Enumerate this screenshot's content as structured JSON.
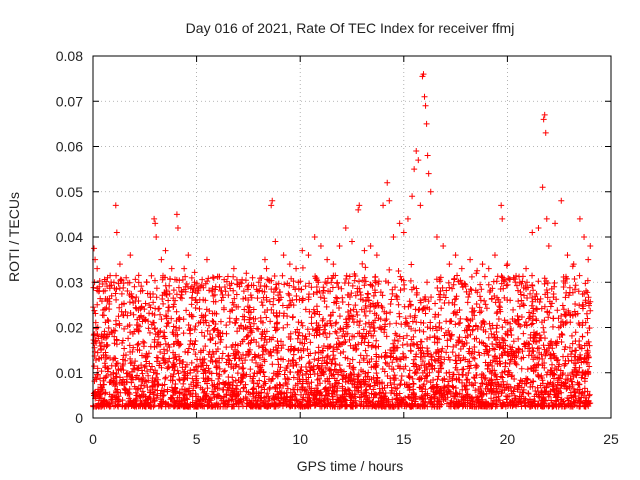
{
  "chart_data": {
    "type": "scatter",
    "title": "Day 016 of 2021, Rate Of TEC Index for receiver ffmj",
    "xlabel": "GPS time / hours",
    "ylabel": "ROTI / TECUs",
    "xlim": [
      0,
      25
    ],
    "ylim": [
      0,
      0.08
    ],
    "xticks": [
      0,
      5,
      10,
      15,
      20,
      25
    ],
    "xtick_labels": [
      "0",
      "5",
      "10",
      "15",
      "20",
      "25"
    ],
    "yticks": [
      0,
      0.01,
      0.02,
      0.03,
      0.04,
      0.05,
      0.06,
      0.07,
      0.08
    ],
    "ytick_labels": [
      "0",
      "0.01",
      "0.02",
      "0.03",
      "0.04",
      "0.05",
      "0.06",
      "0.07",
      "0.08"
    ],
    "grid": true,
    "marker": "plus",
    "series": [
      {
        "name": "ROTI",
        "color": "#ff0000",
        "points": [
          [
            0.05,
            0.0375
          ],
          [
            0.1,
            0.035
          ],
          [
            0.2,
            0.033
          ],
          [
            0.3,
            0.029
          ],
          [
            0.5,
            0.028
          ],
          [
            0.7,
            0.031
          ],
          [
            0.9,
            0.027
          ],
          [
            1.1,
            0.047
          ],
          [
            1.15,
            0.041
          ],
          [
            1.3,
            0.034
          ],
          [
            1.6,
            0.031
          ],
          [
            1.8,
            0.036
          ],
          [
            2.0,
            0.029
          ],
          [
            2.3,
            0.028
          ],
          [
            2.6,
            0.03
          ],
          [
            2.95,
            0.044
          ],
          [
            3.0,
            0.043
          ],
          [
            3.05,
            0.04
          ],
          [
            3.3,
            0.035
          ],
          [
            3.5,
            0.037
          ],
          [
            3.8,
            0.033
          ],
          [
            4.05,
            0.045
          ],
          [
            4.1,
            0.042
          ],
          [
            4.4,
            0.033
          ],
          [
            4.6,
            0.036
          ],
          [
            4.9,
            0.03
          ],
          [
            5.2,
            0.029
          ],
          [
            5.5,
            0.035
          ],
          [
            5.8,
            0.027
          ],
          [
            6.2,
            0.026
          ],
          [
            6.4,
            0.028
          ],
          [
            6.8,
            0.033
          ],
          [
            7.1,
            0.03
          ],
          [
            7.4,
            0.032
          ],
          [
            7.7,
            0.031
          ],
          [
            8.0,
            0.03
          ],
          [
            8.3,
            0.035
          ],
          [
            8.6,
            0.047
          ],
          [
            8.65,
            0.048
          ],
          [
            8.8,
            0.039
          ],
          [
            9.2,
            0.036
          ],
          [
            9.5,
            0.034
          ],
          [
            9.8,
            0.033
          ],
          [
            10.1,
            0.037
          ],
          [
            10.4,
            0.036
          ],
          [
            10.7,
            0.04
          ],
          [
            11.0,
            0.038
          ],
          [
            11.3,
            0.035
          ],
          [
            11.6,
            0.034
          ],
          [
            11.9,
            0.038
          ],
          [
            12.2,
            0.042
          ],
          [
            12.5,
            0.039
          ],
          [
            12.8,
            0.046
          ],
          [
            12.85,
            0.047
          ],
          [
            13.1,
            0.037
          ],
          [
            13.4,
            0.038
          ],
          [
            13.7,
            0.036
          ],
          [
            14.0,
            0.047
          ],
          [
            14.2,
            0.052
          ],
          [
            14.3,
            0.048
          ],
          [
            14.5,
            0.04
          ],
          [
            14.8,
            0.043
          ],
          [
            15.0,
            0.041
          ],
          [
            15.2,
            0.044
          ],
          [
            15.4,
            0.049
          ],
          [
            15.5,
            0.055
          ],
          [
            15.6,
            0.059
          ],
          [
            15.7,
            0.057
          ],
          [
            15.8,
            0.047
          ],
          [
            15.9,
            0.0755
          ],
          [
            15.95,
            0.076
          ],
          [
            16.0,
            0.071
          ],
          [
            16.05,
            0.069
          ],
          [
            16.1,
            0.065
          ],
          [
            16.15,
            0.058
          ],
          [
            16.2,
            0.054
          ],
          [
            16.3,
            0.05
          ],
          [
            16.6,
            0.04
          ],
          [
            16.9,
            0.038
          ],
          [
            17.2,
            0.034
          ],
          [
            17.5,
            0.036
          ],
          [
            17.8,
            0.033
          ],
          [
            18.2,
            0.035
          ],
          [
            18.5,
            0.032
          ],
          [
            18.8,
            0.034
          ],
          [
            19.1,
            0.033
          ],
          [
            19.4,
            0.036
          ],
          [
            19.7,
            0.047
          ],
          [
            19.75,
            0.044
          ],
          [
            20.0,
            0.034
          ],
          [
            20.3,
            0.031
          ],
          [
            20.6,
            0.03
          ],
          [
            20.9,
            0.033
          ],
          [
            21.2,
            0.041
          ],
          [
            21.5,
            0.042
          ],
          [
            21.7,
            0.051
          ],
          [
            21.75,
            0.066
          ],
          [
            21.8,
            0.067
          ],
          [
            21.85,
            0.063
          ],
          [
            21.9,
            0.044
          ],
          [
            22.0,
            0.038
          ],
          [
            22.3,
            0.043
          ],
          [
            22.6,
            0.048
          ],
          [
            22.9,
            0.036
          ],
          [
            23.2,
            0.034
          ],
          [
            23.5,
            0.044
          ],
          [
            23.7,
            0.04
          ],
          [
            23.9,
            0.035
          ],
          [
            24.0,
            0.038
          ]
        ]
      }
    ]
  }
}
